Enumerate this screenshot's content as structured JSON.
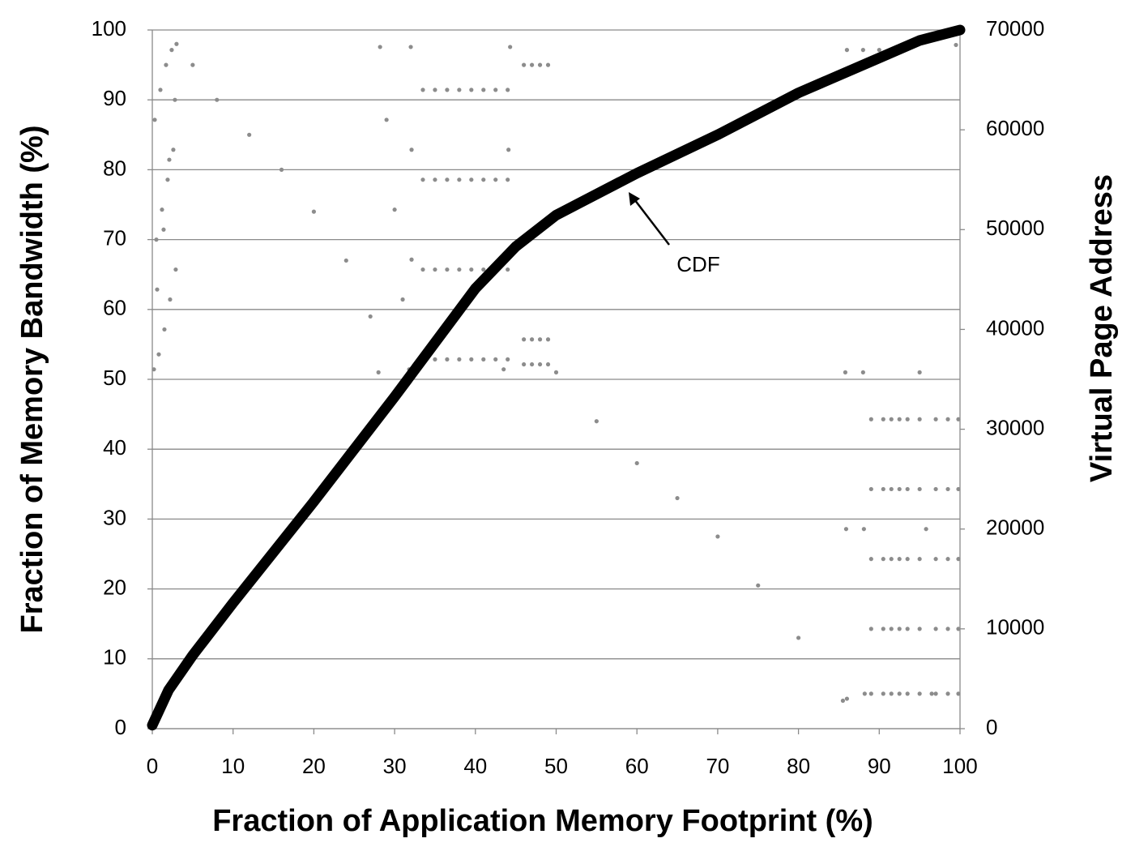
{
  "chart_data": {
    "type": "line",
    "x_label": "Fraction of Application Memory Footprint (%)",
    "y_label": "Fraction of Memory Bandwidth (%)",
    "y2_label": "Virtual Page Address",
    "annotation": "CDF",
    "xlim": [
      0,
      100
    ],
    "xticks": [
      0,
      10,
      20,
      30,
      40,
      50,
      60,
      70,
      80,
      90,
      100
    ],
    "ylim": [
      0,
      100
    ],
    "yticks": [
      0,
      10,
      20,
      30,
      40,
      50,
      60,
      70,
      80,
      90,
      100
    ],
    "y2lim": [
      0,
      70000
    ],
    "y2ticks": [
      0,
      10000,
      20000,
      30000,
      40000,
      50000,
      60000,
      70000
    ],
    "grid": true,
    "series": [
      {
        "type": "scatter",
        "axis": "y2",
        "color": "#8c8c8c",
        "x": [
          0.2,
          0.8,
          1.5,
          2.2,
          2.9,
          0.5,
          1.2,
          1.9,
          2.6,
          0.3,
          1.0,
          1.7,
          2.4,
          0.6,
          1.4,
          2.1,
          2.8,
          3,
          5,
          8,
          12,
          16,
          20,
          24,
          27,
          28,
          28.2,
          29,
          30,
          31,
          31.8,
          32,
          32.1,
          32.1,
          32.2,
          33.5,
          33.5,
          33.5,
          33.5,
          35,
          35,
          35,
          35,
          36.5,
          36.5,
          36.5,
          36.5,
          38,
          38,
          38,
          38,
          39.5,
          39.5,
          39.5,
          39.5,
          41,
          41,
          41,
          41,
          42.5,
          42.5,
          42.5,
          42.5,
          44,
          44,
          44,
          44,
          44.3,
          44.1,
          43.8,
          43.5,
          46,
          47,
          48,
          49,
          46,
          47,
          48,
          49,
          46,
          47,
          48,
          49,
          50,
          55,
          60,
          65,
          70,
          75,
          80,
          85.5,
          86,
          88,
          90,
          92,
          99.5,
          85.8,
          85.9,
          86,
          88,
          88.1,
          88.2,
          89,
          89,
          89,
          89,
          89,
          90.5,
          90.5,
          90.5,
          90.5,
          90.5,
          91.5,
          91.5,
          91.5,
          91.5,
          91.5,
          92.5,
          92.5,
          92.5,
          92.5,
          92.5,
          93.5,
          93.5,
          93.5,
          93.5,
          93.5,
          95,
          95,
          95,
          95,
          95,
          97,
          97,
          97,
          97,
          97,
          98.5,
          98.5,
          98.5,
          98.5,
          98.5,
          99.8,
          99.8,
          99.8,
          99.8,
          99.8,
          95,
          95.8,
          96.5
        ],
        "values": [
          36000,
          37500,
          40000,
          43000,
          46000,
          49000,
          52000,
          55000,
          58000,
          61000,
          64000,
          66500,
          68000,
          44000,
          50000,
          57000,
          63000,
          68600,
          66500,
          63000,
          59500,
          56000,
          51800,
          46900,
          41300,
          35700,
          68300,
          61000,
          52000,
          43000,
          36000,
          68300,
          58000,
          47000,
          36000,
          37000,
          46000,
          55000,
          64000,
          37000,
          46000,
          55000,
          64000,
          37000,
          46000,
          55000,
          64000,
          37000,
          46000,
          55000,
          64000,
          37000,
          46000,
          55000,
          64000,
          37000,
          46000,
          55000,
          64000,
          37000,
          46000,
          55000,
          64000,
          37000,
          46000,
          55000,
          64000,
          68300,
          58000,
          47000,
          36000,
          36500,
          36500,
          36500,
          36500,
          39000,
          39000,
          39000,
          39000,
          66500,
          66500,
          66500,
          66500,
          35700,
          30800,
          26600,
          23100,
          19250,
          14350,
          9100,
          2800,
          68000,
          68000,
          68000,
          68000,
          68500,
          35700,
          20000,
          3000,
          35700,
          20000,
          3500,
          3500,
          10000,
          17000,
          24000,
          31000,
          3500,
          10000,
          17000,
          24000,
          31000,
          3500,
          10000,
          17000,
          24000,
          31000,
          3500,
          10000,
          17000,
          24000,
          31000,
          3500,
          10000,
          17000,
          24000,
          31000,
          3500,
          10000,
          17000,
          24000,
          31000,
          3500,
          10000,
          17000,
          24000,
          31000,
          3500,
          10000,
          17000,
          24000,
          31000,
          3500,
          10000,
          17000,
          24000,
          31000,
          35700,
          20000,
          3500
        ]
      },
      {
        "type": "line",
        "axis": "y",
        "color": "#000000",
        "x": [
          0,
          2,
          5,
          10,
          20,
          30,
          40,
          45,
          50,
          60,
          70,
          80,
          90,
          95,
          100
        ],
        "values": [
          0.5,
          5.5,
          10.5,
          18,
          32.5,
          47.5,
          63,
          69,
          73.5,
          79.5,
          85,
          91,
          96,
          98.5,
          100
        ]
      }
    ]
  }
}
